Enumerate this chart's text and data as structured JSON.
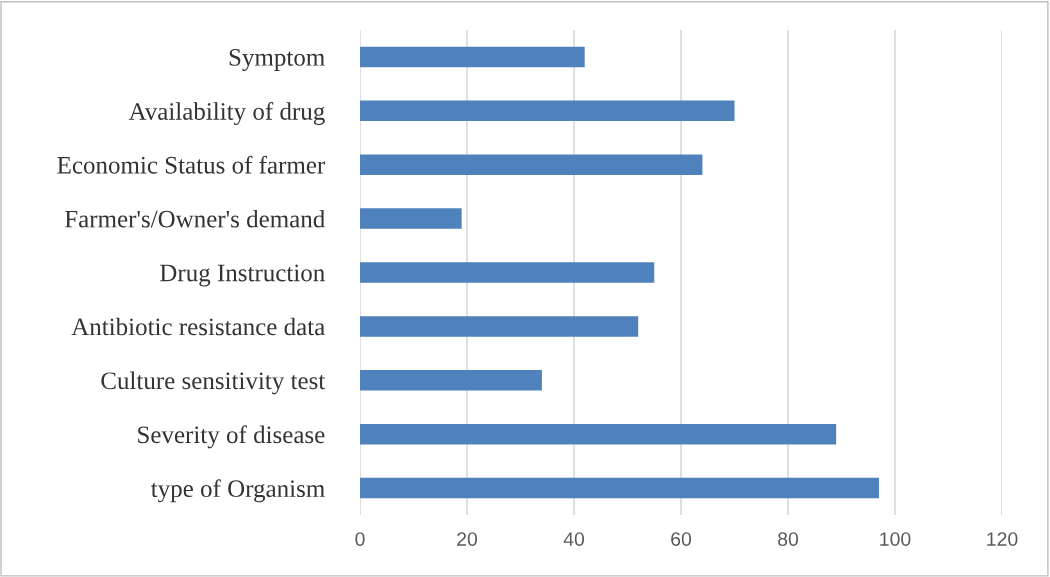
{
  "chart_data": {
    "type": "bar",
    "orientation": "horizontal",
    "categories": [
      "Symptom",
      "Availability of drug",
      "Economic Status of farmer",
      "Farmer's/Owner's demand",
      "Drug Instruction",
      "Antibiotic resistance data",
      "Culture sensitivity test",
      "Severity of disease",
      "type of Organism"
    ],
    "values": [
      42,
      70,
      64,
      19,
      55,
      52,
      34,
      89,
      97
    ],
    "color": "#4f81bd",
    "xlim": [
      0,
      120
    ],
    "xticks": [
      0,
      20,
      40,
      60,
      80,
      100,
      120
    ],
    "grid": "x"
  }
}
